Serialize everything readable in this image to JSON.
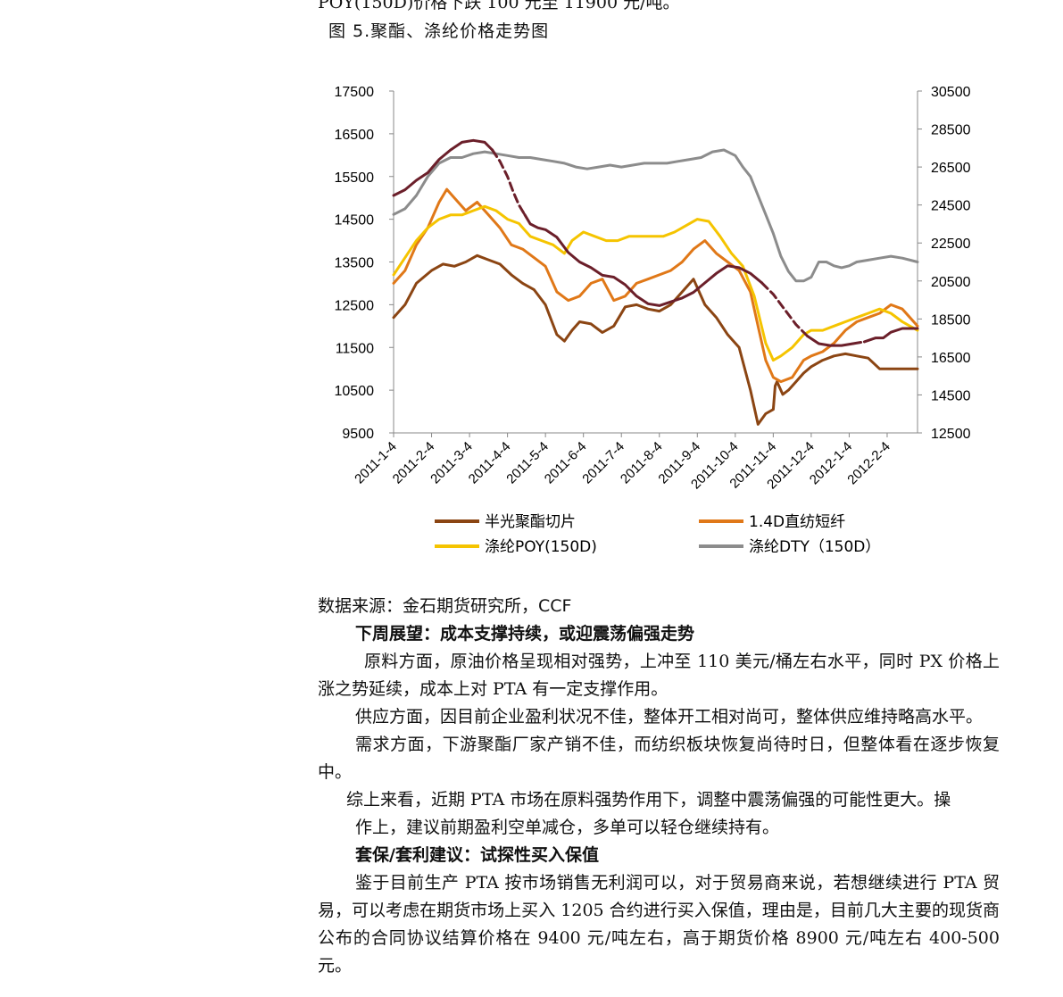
{
  "doc": {
    "top_cut_line": "POY(150D)价格下跌 100 元至 11900 元/吨。",
    "figure_title": "图 5.聚酯、涤纶价格走势图",
    "source": "数据来源：金石期货研究所，CCF",
    "heading1": "下周展望：成本支撑持续，或迎震荡偏强走势",
    "para1": "原料方面，原油价格呈现相对强势，上冲至 110 美元/桶左右水平，同时 PX 价格上涨之势延续，成本上对 PTA 有一定支撑作用。",
    "para2": "供应方面，因目前企业盈利状况不佳，整体开工相对尚可，整体供应维持略高水平。",
    "para3": "需求方面，下游聚酯厂家产销不佳，而纺织板块恢复尚待时日，但整体看在逐步恢复中。",
    "para4a": "综上来看，近期 PTA 市场在原料强势作用下，调整中震荡偏强的可能性更大。操",
    "para4b": "作上，建议前期盈利空单减仓，多单可以轻仓继续持有。",
    "heading2": "套保/套利建议：试探性买入保值",
    "para5": "鉴于目前生产 PTA 按市场销售无利润可以，对于贸易商来说，若想继续进行 PTA 贸易，可以考虑在期货市场上买入 1205 合约进行买入保值，理由是，目前几大主要的现货商公布的合同协议结算价格在 9400 元/吨左右，高于期货价格 8900 元/吨左右 400-500 元。"
  },
  "chart_data": {
    "type": "line",
    "title": "",
    "xlabel": "",
    "ylabel": "",
    "x_ticks": [
      "2011-1-4",
      "2011-2-4",
      "2011-3-4",
      "2011-4-4",
      "2011-5-4",
      "2011-6-4",
      "2011-7-4",
      "2011-8-4",
      "2011-9-4",
      "2011-10-4",
      "2011-11-4",
      "2011-12-4",
      "2012-1-4",
      "2012-2-4"
    ],
    "left_axis": {
      "ylim": [
        9500,
        17500
      ],
      "ticks": [
        9500,
        10500,
        11500,
        12500,
        13500,
        14500,
        15500,
        16500,
        17500
      ]
    },
    "right_axis": {
      "ylim": [
        12500,
        30500
      ],
      "ticks": [
        12500,
        14500,
        16500,
        18500,
        20500,
        22500,
        24500,
        26500,
        28500,
        30500
      ]
    },
    "grid": false,
    "legend_position": "bottom",
    "series": [
      {
        "name": "半光聚酯切片",
        "axis": "left",
        "color": "#8B4513",
        "x": [
          0,
          0.3,
          0.6,
          1,
          1.3,
          1.6,
          1.9,
          2.2,
          2.5,
          2.8,
          3.1,
          3.4,
          3.7,
          4,
          4.3,
          4.5,
          4.7,
          4.9,
          5.2,
          5.5,
          5.8,
          6.1,
          6.4,
          6.7,
          7,
          7.3,
          7.6,
          7.9,
          8.2,
          8.5,
          8.8,
          9.1,
          9.4,
          9.6,
          9.8,
          10,
          10.05,
          10.1,
          10.25,
          10.4,
          10.6,
          10.8,
          11,
          11.3,
          11.6,
          11.9,
          12.2,
          12.5,
          12.8,
          13.1,
          13.4,
          13.8
        ],
        "y": [
          12200,
          12500,
          13000,
          13300,
          13450,
          13400,
          13500,
          13650,
          13550,
          13450,
          13200,
          13000,
          12850,
          12500,
          11800,
          11650,
          11900,
          12100,
          12050,
          11850,
          12000,
          12450,
          12500,
          12400,
          12350,
          12500,
          12800,
          13100,
          12500,
          12200,
          11800,
          11500,
          10500,
          9700,
          9950,
          10050,
          10600,
          10700,
          10400,
          10500,
          10700,
          10900,
          11050,
          11200,
          11300,
          11350,
          11300,
          11250,
          11000,
          11000,
          11000,
          11000
        ]
      },
      {
        "name": "1.4D直纺短纤",
        "axis": "left",
        "color": "#E07818",
        "x": [
          0,
          0.3,
          0.6,
          0.9,
          1.2,
          1.4,
          1.6,
          1.9,
          2.2,
          2.5,
          2.8,
          3.1,
          3.4,
          3.7,
          4,
          4.3,
          4.6,
          4.9,
          5.2,
          5.5,
          5.8,
          6.1,
          6.4,
          6.7,
          7,
          7.3,
          7.6,
          7.9,
          8.2,
          8.5,
          8.8,
          9.1,
          9.4,
          9.6,
          9.8,
          10,
          10.2,
          10.5,
          10.8,
          11,
          11.3,
          11.6,
          11.9,
          12.2,
          12.5,
          12.8,
          13.1,
          13.4,
          13.8
        ],
        "y": [
          13000,
          13300,
          13900,
          14300,
          14900,
          15200,
          15000,
          14700,
          14900,
          14600,
          14300,
          13900,
          13800,
          13600,
          13400,
          12800,
          12600,
          12700,
          13000,
          13100,
          12600,
          12700,
          13000,
          13100,
          13200,
          13300,
          13500,
          13800,
          14000,
          13700,
          13500,
          13300,
          12800,
          12000,
          11200,
          10800,
          10700,
          10800,
          11200,
          11300,
          11400,
          11600,
          11900,
          12100,
          12200,
          12300,
          12500,
          12400,
          12000
        ]
      },
      {
        "name": "涤纶POY(150D)",
        "axis": "left",
        "color": "#F5C400",
        "x": [
          0,
          0.3,
          0.6,
          0.9,
          1.2,
          1.5,
          1.8,
          2.1,
          2.4,
          2.7,
          3,
          3.3,
          3.6,
          3.9,
          4.2,
          4.5,
          4.7,
          5,
          5.3,
          5.6,
          5.9,
          6.2,
          6.5,
          6.8,
          7.1,
          7.4,
          7.7,
          8,
          8.3,
          8.6,
          8.9,
          9.2,
          9.5,
          9.8,
          10,
          10.2,
          10.5,
          10.8,
          11,
          11.3,
          11.6,
          11.9,
          12.2,
          12.5,
          12.8,
          13.1,
          13.4,
          13.8
        ],
        "y": [
          13200,
          13600,
          14000,
          14300,
          14500,
          14600,
          14600,
          14700,
          14800,
          14700,
          14500,
          14400,
          14100,
          14000,
          13900,
          13700,
          14000,
          14200,
          14100,
          14000,
          14000,
          14100,
          14100,
          14100,
          14100,
          14200,
          14350,
          14500,
          14450,
          14100,
          13700,
          13400,
          12700,
          11600,
          11200,
          11300,
          11500,
          11800,
          11900,
          11900,
          12000,
          12100,
          12200,
          12300,
          12400,
          12300,
          12100,
          11900
        ]
      },
      {
        "name": "涤纶DTY（150D）",
        "axis": "right",
        "color": "#8C8C8C",
        "x": [
          0,
          0.3,
          0.6,
          0.9,
          1.2,
          1.5,
          1.8,
          2.1,
          2.4,
          2.7,
          3,
          3.3,
          3.6,
          3.9,
          4.2,
          4.5,
          4.8,
          5.1,
          5.4,
          5.7,
          6,
          6.3,
          6.6,
          6.9,
          7.2,
          7.5,
          7.8,
          8.1,
          8.4,
          8.7,
          9,
          9.2,
          9.4,
          9.6,
          9.8,
          10,
          10.2,
          10.4,
          10.6,
          10.8,
          11,
          11.2,
          11.4,
          11.6,
          11.8,
          12,
          12.2,
          12.5,
          12.8,
          13.1,
          13.4,
          13.8
        ],
        "y": [
          24000,
          24300,
          25000,
          26000,
          26700,
          27000,
          27000,
          27200,
          27300,
          27200,
          27100,
          27000,
          27000,
          26900,
          26800,
          26700,
          26500,
          26400,
          26500,
          26600,
          26500,
          26600,
          26700,
          26700,
          26700,
          26800,
          26900,
          27000,
          27300,
          27400,
          27100,
          26500,
          26000,
          25000,
          24000,
          23000,
          21800,
          21000,
          20500,
          20500,
          20700,
          21500,
          21500,
          21300,
          21200,
          21300,
          21500,
          21600,
          21700,
          21800,
          21700,
          21500
        ]
      },
      {
        "name": "",
        "axis": "right",
        "color": "#6B1F2A",
        "x": [
          0,
          0.3,
          0.6,
          0.9,
          1.2,
          1.5,
          1.8,
          2.1,
          2.4,
          2.6,
          2.8,
          3,
          3.15,
          3.3,
          3.45,
          3.6,
          3.8,
          4,
          4.3,
          4.6,
          4.9,
          5.2,
          5.5,
          5.8,
          6.1,
          6.4,
          6.7,
          7,
          7.3,
          7.6,
          7.9,
          8.2,
          8.5,
          8.8,
          9.1,
          9.4,
          9.7,
          10,
          10.3,
          10.6,
          10.9,
          11.2,
          11.5,
          11.8,
          12.1,
          12.4,
          12.7,
          12.9,
          13.1,
          13.4,
          13.8
        ],
        "y": [
          25000,
          25300,
          25800,
          26200,
          26900,
          27400,
          27800,
          27900,
          27800,
          27400,
          26800,
          26000,
          25200,
          24500,
          24000,
          23500,
          23300,
          23200,
          22800,
          22000,
          21500,
          21200,
          20800,
          20700,
          20300,
          19700,
          19300,
          19200,
          19400,
          19600,
          19900,
          20400,
          20900,
          21300,
          21200,
          20900,
          20400,
          19800,
          19000,
          18200,
          17600,
          17200,
          17100,
          17100,
          17200,
          17300,
          17500,
          17500,
          17800,
          18000,
          18000
        ]
      }
    ]
  },
  "legend": [
    {
      "label": "半光聚酯切片",
      "color": "#8B4513"
    },
    {
      "label": "1.4D直纺短纤",
      "color": "#E07818"
    },
    {
      "label": "涤纶POY(150D)",
      "color": "#F5C400"
    },
    {
      "label": "涤纶DTY（150D）",
      "color": "#8C8C8C"
    }
  ]
}
